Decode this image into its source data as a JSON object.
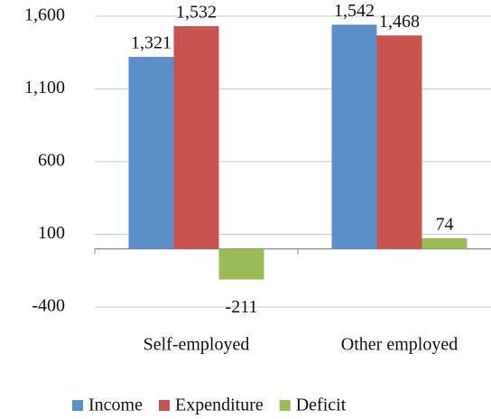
{
  "chart_data": {
    "type": "bar",
    "categories": [
      "Self-employed",
      "Other employed"
    ],
    "series": [
      {
        "name": "Income",
        "color": "#5b8fc9",
        "values": [
          1321,
          1542
        ],
        "value_labels": [
          "1,321",
          "1,542"
        ]
      },
      {
        "name": "Expenditure",
        "color": "#c9534f",
        "values": [
          1532,
          1468
        ],
        "value_labels": [
          "1,532",
          "1,468"
        ]
      },
      {
        "name": "Deficit",
        "color": "#9bbb59",
        "values": [
          -211,
          74
        ],
        "value_labels": [
          "-211",
          "74"
        ]
      }
    ],
    "ylim": [
      -400,
      1600
    ],
    "yticks": [
      -400,
      100,
      600,
      {
        "value": 1100,
        "label": "1,100"
      },
      {
        "value": 1600,
        "label": "1,600"
      }
    ],
    "grid": true,
    "legend": "bottom"
  }
}
